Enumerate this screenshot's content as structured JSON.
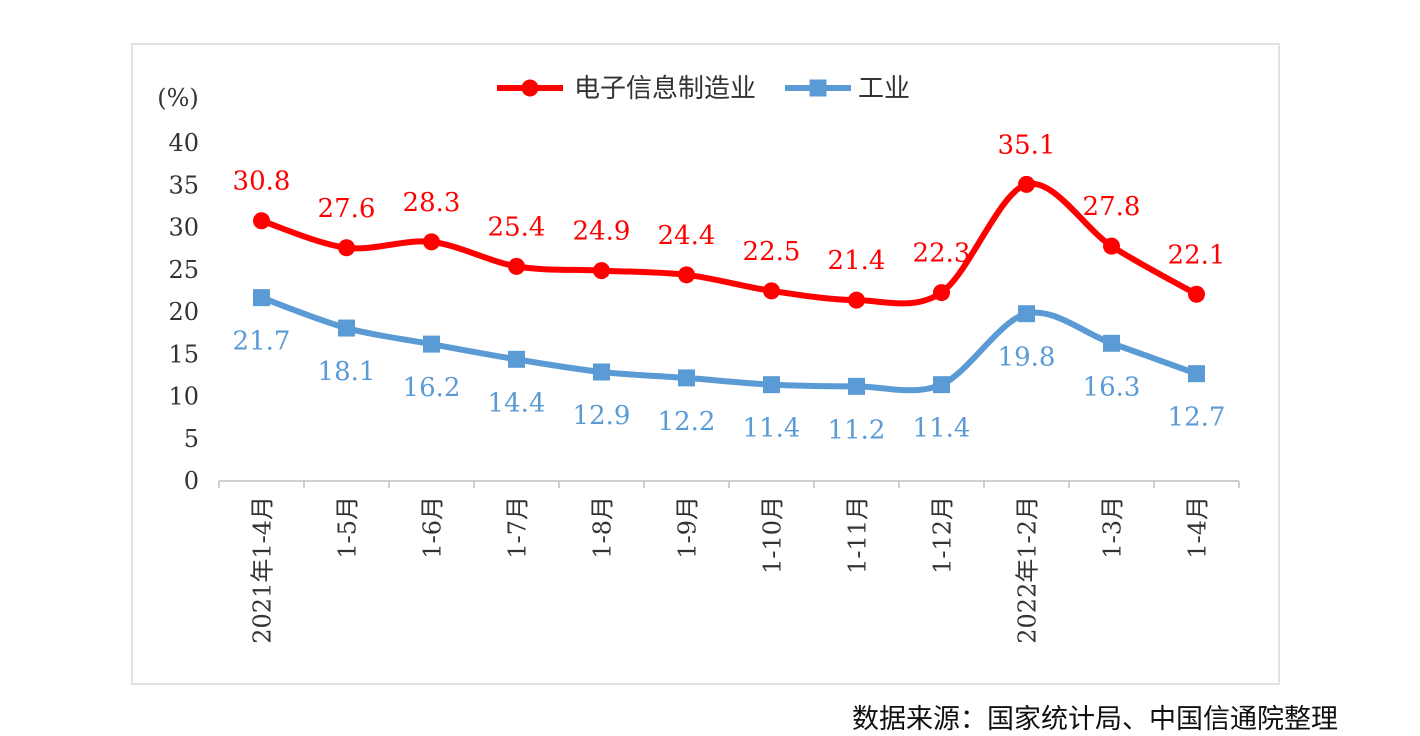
{
  "chart_data": {
    "type": "line",
    "unit_label": "(%)",
    "categories": [
      "2021年1-4月",
      "1-5月",
      "1-6月",
      "1-7月",
      "1-8月",
      "1-9月",
      "1-10月",
      "1-11月",
      "1-12月",
      "2022年1-2月",
      "1-3月",
      "1-4月"
    ],
    "yticks": [
      "0",
      "5",
      "10",
      "15",
      "20",
      "25",
      "30",
      "35",
      "40"
    ],
    "ylim": [
      0,
      40
    ],
    "grid": false,
    "legend_position": "top-center",
    "series": [
      {
        "name": "电子信息制造业",
        "color": "#ff0000",
        "marker": "circle",
        "values": [
          30.8,
          27.6,
          28.3,
          25.4,
          24.9,
          24.4,
          22.5,
          21.4,
          22.3,
          35.1,
          27.8,
          22.1
        ]
      },
      {
        "name": "工业",
        "color": "#5b9bd5",
        "marker": "square",
        "values": [
          21.7,
          18.1,
          16.2,
          14.4,
          12.9,
          12.2,
          11.4,
          11.2,
          11.4,
          19.8,
          16.3,
          12.7
        ]
      }
    ]
  },
  "source": "数据来源：国家统计局、中国信通院整理"
}
